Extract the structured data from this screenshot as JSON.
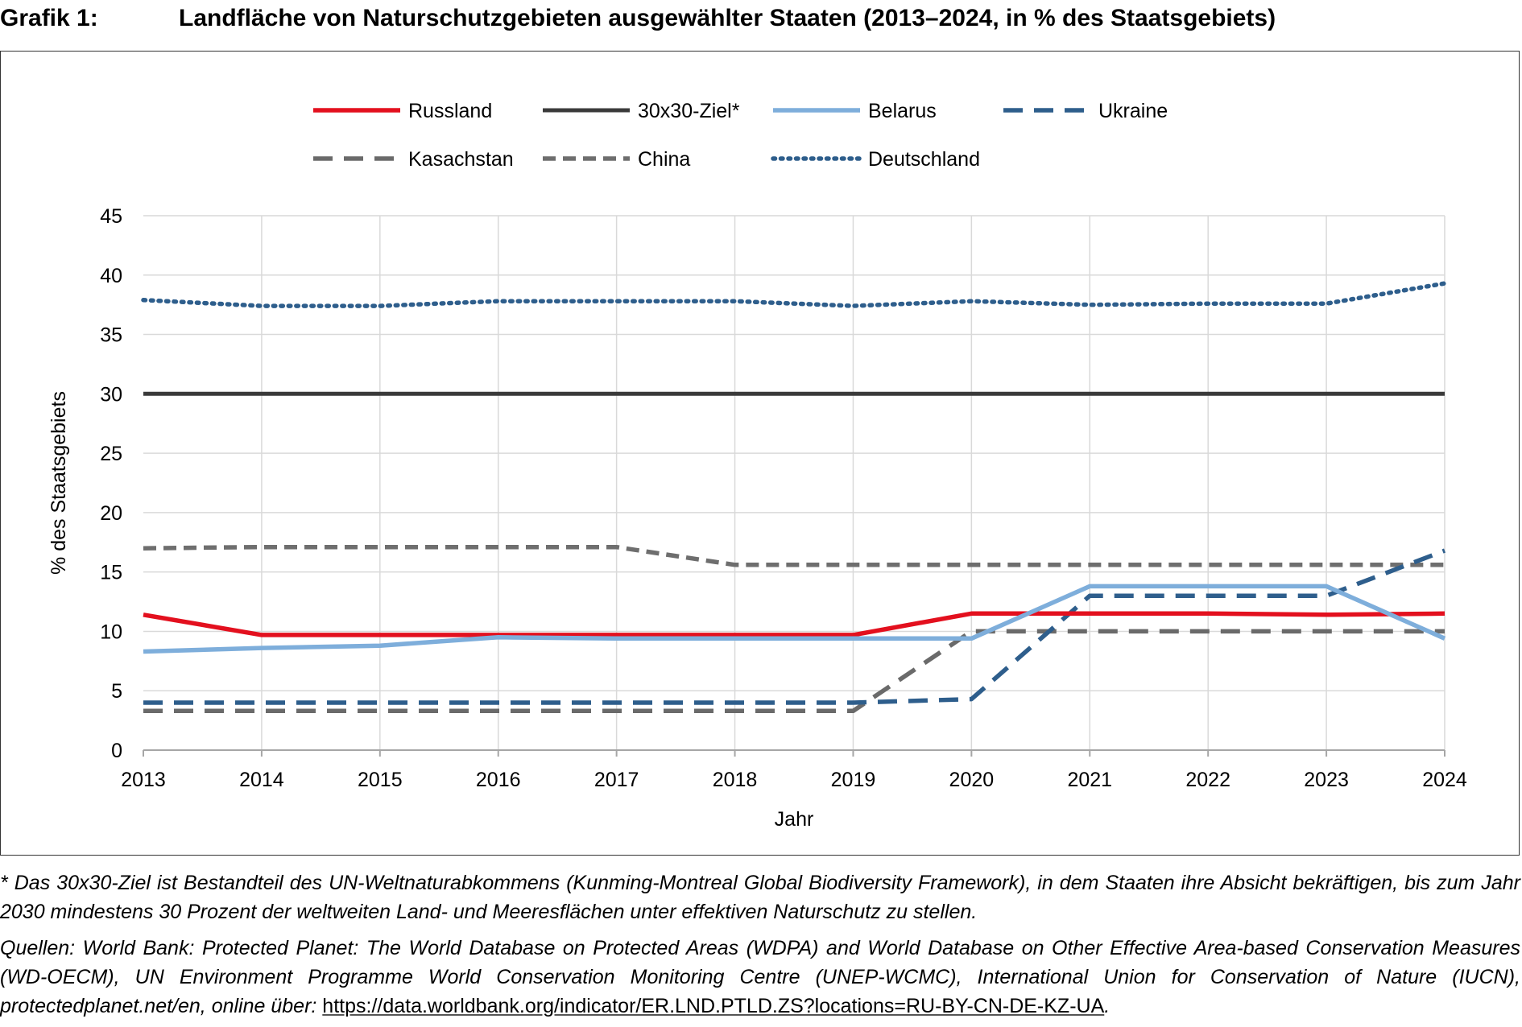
{
  "header": {
    "label": "Grafik 1:",
    "title": "Landfläche von Naturschutzgebieten ausgewählter Staaten (2013–2024, in % des Staatsgebiets)"
  },
  "chart_data": {
    "type": "line",
    "title": "Landfläche von Naturschutzgebieten ausgewählter Staaten (2013–2024, in % des Staatsgebiets)",
    "xlabel": "Jahr",
    "ylabel": "% des Staatsgebiets",
    "ylim": [
      0,
      45
    ],
    "yticks": [
      0,
      5,
      10,
      15,
      20,
      25,
      30,
      35,
      40,
      45
    ],
    "grid": true,
    "legend_position": "top",
    "x": [
      2013,
      2014,
      2015,
      2016,
      2017,
      2018,
      2019,
      2020,
      2021,
      2022,
      2023,
      2024
    ],
    "series": [
      {
        "name": "Russland",
        "color": "#e3101e",
        "style": "solid",
        "width": "thick",
        "values": [
          11.4,
          9.7,
          9.7,
          9.7,
          9.7,
          9.7,
          9.7,
          11.5,
          11.5,
          11.5,
          11.4,
          11.5
        ]
      },
      {
        "name": "30x30-Ziel*",
        "color": "#3a3a3a",
        "style": "solid",
        "width": "medium",
        "values": [
          30,
          30,
          30,
          30,
          30,
          30,
          30,
          30,
          30,
          30,
          30,
          30
        ]
      },
      {
        "name": "Belarus",
        "color": "#7eaedb",
        "style": "solid",
        "width": "thick",
        "values": [
          8.3,
          8.6,
          8.8,
          9.5,
          9.4,
          9.4,
          9.4,
          9.4,
          13.8,
          13.8,
          13.8,
          9.4
        ]
      },
      {
        "name": "Ukraine",
        "color": "#2e5e8c",
        "style": "longdash",
        "width": "thick",
        "values": [
          4.0,
          4.0,
          4.0,
          4.0,
          4.0,
          4.0,
          4.0,
          4.3,
          13.0,
          13.0,
          13.0,
          16.8
        ]
      },
      {
        "name": "Kasachstan",
        "color": "#6a6a6a",
        "style": "longdash",
        "width": "thick",
        "values": [
          3.3,
          3.3,
          3.3,
          3.3,
          3.3,
          3.3,
          3.3,
          10.0,
          10.0,
          10.0,
          10.0,
          10.0
        ]
      },
      {
        "name": "China",
        "color": "#6e6e6e",
        "style": "shortdash",
        "width": "thick",
        "values": [
          17.0,
          17.1,
          17.1,
          17.1,
          17.1,
          15.6,
          15.6,
          15.6,
          15.6,
          15.6,
          15.6,
          15.6
        ]
      },
      {
        "name": "Deutschland",
        "color": "#2e5e8c",
        "style": "dotted",
        "width": "thick",
        "values": [
          37.9,
          37.4,
          37.4,
          37.8,
          37.8,
          37.8,
          37.4,
          37.8,
          37.5,
          37.6,
          37.6,
          39.3
        ]
      }
    ]
  },
  "footnote": "* Das 30x30-Ziel ist Bestandteil des UN-Weltnaturabkommens (Kunming-Montreal Global Biodiversity Framework), in dem Staaten ihre Absicht bekräftigen, bis zum Jahr 2030 mindestens 30 Prozent der weltweiten Land- und Meeresflächen unter effektiven Naturschutz zu stellen.",
  "sources": {
    "text": "Quellen: World Bank: Protected Planet: The World Database on Protected Areas (WDPA) and World Database on Other Effective Area-based Conservation Measures (WD-OECM), UN Environment Programme World Conservation Monitoring Centre (UNEP-WCMC), International Union for Conservation of Nature (IUCN), protectedplanet.net/en, online über: ",
    "url": "https://data.worldbank.org/indicator/ER.LND.PTLD.ZS?locations=RU-BY-CN-DE-KZ-UA",
    "end": "."
  }
}
